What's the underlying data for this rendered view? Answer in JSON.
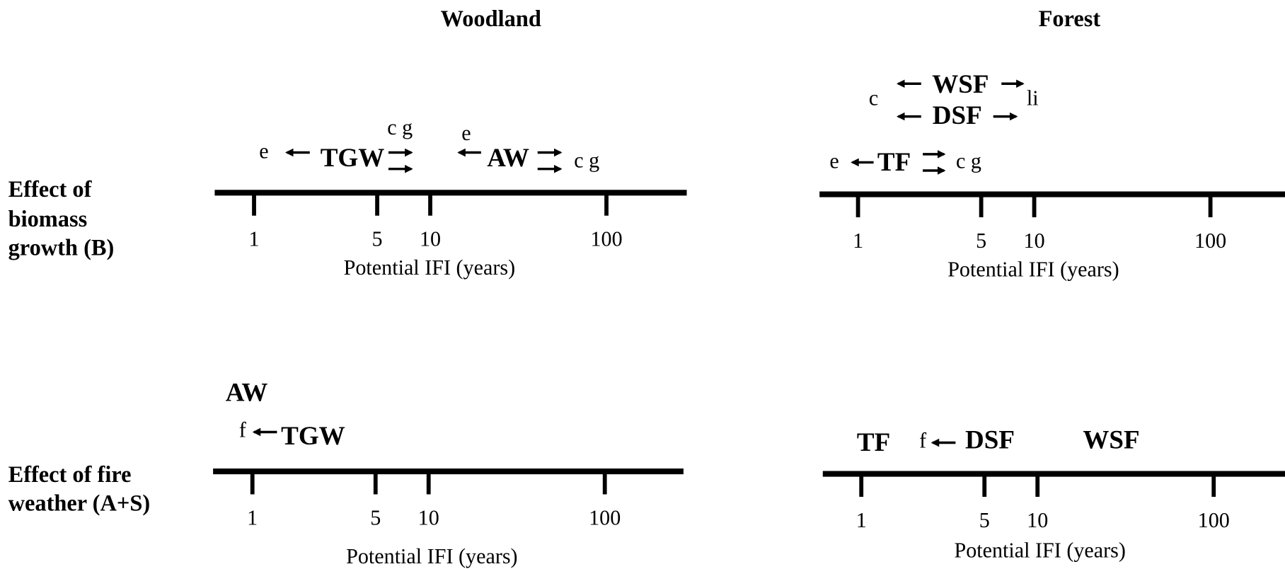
{
  "column_titles": [
    "Woodland",
    "Forest"
  ],
  "row_labels": [
    [
      "Effect of",
      "biomass",
      "growth (B)"
    ],
    [
      "Effect of fire",
      "weather (A+S)"
    ]
  ],
  "panels": [
    {
      "ticks": [
        "1",
        "5",
        "10",
        "100"
      ],
      "axis_label": "Potential IFI (years)",
      "labels": [
        "e",
        "TGW",
        "c g",
        "e",
        "AW",
        "c g"
      ]
    },
    {
      "ticks": [
        "1",
        "5",
        "10",
        "100"
      ],
      "axis_label": "Potential IFI (years)",
      "labels": [
        "c",
        "WSF",
        "li",
        "DSF",
        "e",
        "TF",
        "c g"
      ]
    },
    {
      "ticks": [
        "1",
        "5",
        "10",
        "100"
      ],
      "axis_label": "Potential IFI (years)",
      "labels": [
        "AW",
        "f",
        "TGW"
      ]
    },
    {
      "ticks": [
        "1",
        "5",
        "10",
        "100"
      ],
      "axis_label": "Potential IFI (years)",
      "labels": [
        "TF",
        "f",
        "DSF",
        "WSF"
      ]
    }
  ]
}
